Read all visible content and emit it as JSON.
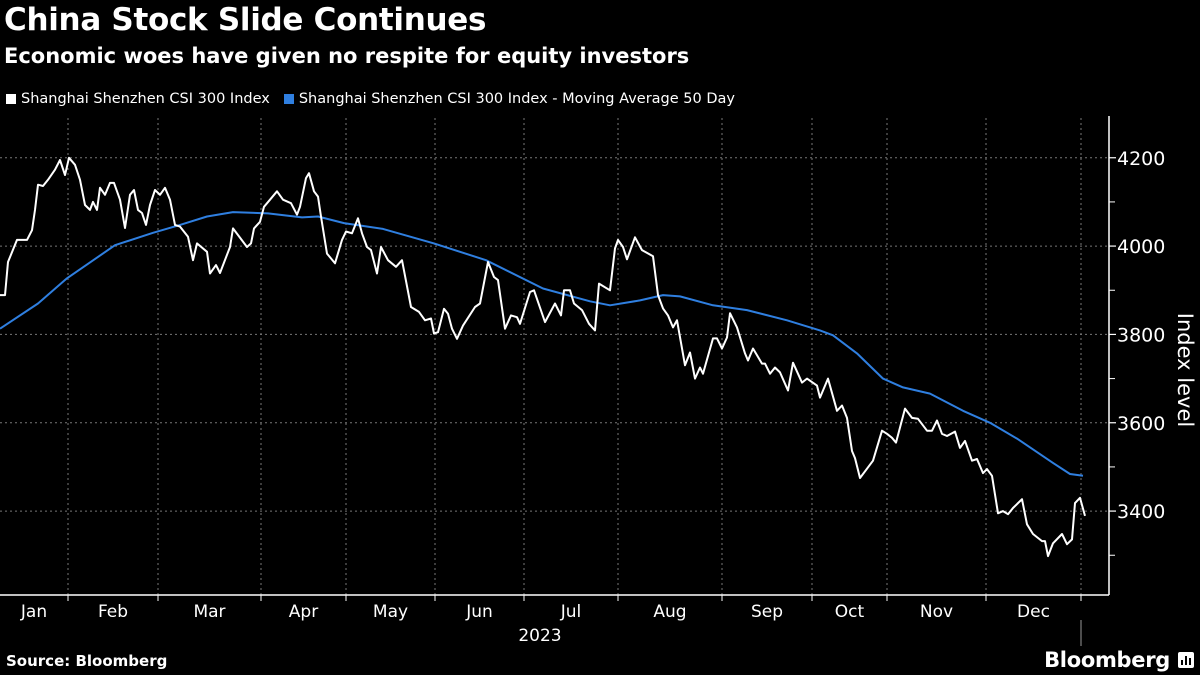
{
  "title": "China Stock Slide Continues",
  "subtitle": "Economic woes have given no respite for equity investors",
  "source": "Source: Bloomberg",
  "brand": "Bloomberg",
  "chart_data": {
    "type": "line",
    "ylabel": "Index level",
    "xlabel": "2023",
    "ylim": [
      3210,
      4290
    ],
    "xlim": [
      0,
      217
    ],
    "x_unit": "approximate trading-day index within 2023",
    "yticks": [
      3400,
      3600,
      3800,
      4000,
      4200
    ],
    "minor_yticks": [
      3300,
      3500,
      3700,
      3900,
      4100
    ],
    "grid": true,
    "legend_position": "top-left",
    "months": [
      "Jan",
      "Feb",
      "Mar",
      "Apr",
      "May",
      "Jun",
      "Jul",
      "Aug",
      "Sep",
      "Oct",
      "Nov",
      "Dec"
    ],
    "month_boundaries": [
      13.6,
      31.6,
      52.2,
      69.2,
      87,
      104.8,
      123.6,
      144.4,
      162.4,
      177.4,
      197.2,
      216.2
    ],
    "series": [
      {
        "name": "Shanghai Shenzhen CSI 300 Index",
        "color": "#ffffff",
        "points": [
          [
            0,
            3889
          ],
          [
            1,
            3889
          ],
          [
            1.6,
            3964
          ],
          [
            3.4,
            4014
          ],
          [
            5.4,
            4014
          ],
          [
            6.4,
            4036
          ],
          [
            7,
            4082
          ],
          [
            7.6,
            4139
          ],
          [
            8.6,
            4136
          ],
          [
            9.6,
            4150
          ],
          [
            11,
            4173
          ],
          [
            12,
            4195
          ],
          [
            13,
            4161
          ],
          [
            13.8,
            4200
          ],
          [
            15,
            4184
          ],
          [
            16,
            4150
          ],
          [
            17,
            4093
          ],
          [
            18,
            4082
          ],
          [
            18.6,
            4100
          ],
          [
            19.4,
            4082
          ],
          [
            20,
            4132
          ],
          [
            21,
            4116
          ],
          [
            22,
            4143
          ],
          [
            22.8,
            4143
          ],
          [
            24,
            4105
          ],
          [
            25,
            4041
          ],
          [
            26,
            4116
          ],
          [
            26.8,
            4127
          ],
          [
            27.6,
            4082
          ],
          [
            28.4,
            4075
          ],
          [
            29.2,
            4048
          ],
          [
            30,
            4093
          ],
          [
            31,
            4127
          ],
          [
            32,
            4116
          ],
          [
            33,
            4132
          ],
          [
            34,
            4105
          ],
          [
            35,
            4048
          ],
          [
            36,
            4044
          ],
          [
            37.6,
            4021
          ],
          [
            38.6,
            3968
          ],
          [
            39.4,
            4006
          ],
          [
            41.4,
            3987
          ],
          [
            42,
            3938
          ],
          [
            43.2,
            3957
          ],
          [
            44,
            3939
          ],
          [
            46,
            3998
          ],
          [
            46.6,
            4040
          ],
          [
            49.4,
            3998
          ],
          [
            50.2,
            4006
          ],
          [
            50.8,
            4040
          ],
          [
            52,
            4055
          ],
          [
            52.8,
            4089
          ],
          [
            54,
            4105
          ],
          [
            55.4,
            4124
          ],
          [
            56.6,
            4105
          ],
          [
            58.2,
            4097
          ],
          [
            59.4,
            4071
          ],
          [
            60,
            4089
          ],
          [
            61.2,
            4154
          ],
          [
            61.8,
            4165
          ],
          [
            62.8,
            4124
          ],
          [
            63.6,
            4112
          ],
          [
            64.2,
            4067
          ],
          [
            65.4,
            3983
          ],
          [
            67,
            3961
          ],
          [
            68.4,
            4014
          ],
          [
            69.2,
            4033
          ],
          [
            70.4,
            4029
          ],
          [
            71.6,
            4063
          ],
          [
            72.4,
            4029
          ],
          [
            73.4,
            3998
          ],
          [
            74.2,
            3991
          ],
          [
            75.4,
            3938
          ],
          [
            76.2,
            3998
          ],
          [
            77.6,
            3968
          ],
          [
            79.2,
            3953
          ],
          [
            80.4,
            3968
          ],
          [
            82.2,
            3862
          ],
          [
            83.8,
            3851
          ],
          [
            85,
            3832
          ],
          [
            86.2,
            3836
          ],
          [
            86.8,
            3802
          ],
          [
            87.6,
            3805
          ],
          [
            88.8,
            3858
          ],
          [
            89.6,
            3847
          ],
          [
            90.4,
            3813
          ],
          [
            91.4,
            3790
          ],
          [
            92.6,
            3820
          ],
          [
            95,
            3862
          ],
          [
            96,
            3870
          ],
          [
            97.6,
            3964
          ],
          [
            98.8,
            3930
          ],
          [
            99.6,
            3923
          ],
          [
            101,
            3813
          ],
          [
            102.2,
            3843
          ],
          [
            103.4,
            3839
          ],
          [
            104,
            3824
          ],
          [
            106,
            3896
          ],
          [
            106.8,
            3900
          ],
          [
            109,
            3828
          ],
          [
            111,
            3870
          ],
          [
            112.2,
            3843
          ],
          [
            112.8,
            3900
          ],
          [
            114,
            3900
          ],
          [
            114.8,
            3870
          ],
          [
            116.4,
            3855
          ],
          [
            117.8,
            3824
          ],
          [
            119,
            3809
          ],
          [
            119.8,
            3915
          ],
          [
            122,
            3900
          ],
          [
            123,
            3995
          ],
          [
            123.6,
            4014
          ],
          [
            124.6,
            3998
          ],
          [
            125.4,
            3970
          ],
          [
            127,
            4020
          ],
          [
            128.4,
            3991
          ],
          [
            130.6,
            3977
          ],
          [
            131.6,
            3889
          ],
          [
            132.6,
            3859
          ],
          [
            133.6,
            3843
          ],
          [
            134.6,
            3816
          ],
          [
            135.4,
            3832
          ],
          [
            137,
            3730
          ],
          [
            138,
            3759
          ],
          [
            139,
            3700
          ],
          [
            140,
            3725
          ],
          [
            140.6,
            3711
          ],
          [
            142.6,
            3791
          ],
          [
            143.4,
            3791
          ],
          [
            144.4,
            3768
          ],
          [
            145.4,
            3793
          ],
          [
            146,
            3848
          ],
          [
            147.4,
            3816
          ],
          [
            149,
            3757
          ],
          [
            149.6,
            3741
          ],
          [
            150.6,
            3768
          ],
          [
            152.4,
            3734
          ],
          [
            153,
            3734
          ],
          [
            154,
            3711
          ],
          [
            155,
            3725
          ],
          [
            156,
            3714
          ],
          [
            157.6,
            3673
          ],
          [
            158.6,
            3736
          ],
          [
            160.4,
            3691
          ],
          [
            161.4,
            3700
          ],
          [
            163.4,
            3684
          ],
          [
            164,
            3657
          ],
          [
            165.6,
            3700
          ],
          [
            167.4,
            3627
          ],
          [
            168.4,
            3639
          ],
          [
            169.4,
            3611
          ],
          [
            170.4,
            3536
          ],
          [
            171,
            3520
          ],
          [
            172,
            3475
          ],
          [
            174.6,
            3514
          ],
          [
            176.4,
            3582
          ],
          [
            177.4,
            3575
          ],
          [
            178.4,
            3566
          ],
          [
            179.2,
            3555
          ],
          [
            181,
            3632
          ],
          [
            182.4,
            3611
          ],
          [
            183.6,
            3609
          ],
          [
            185.4,
            3582
          ],
          [
            186.4,
            3582
          ],
          [
            187.4,
            3605
          ],
          [
            188.4,
            3575
          ],
          [
            189.4,
            3570
          ],
          [
            191,
            3580
          ],
          [
            192,
            3543
          ],
          [
            193,
            3559
          ],
          [
            194.4,
            3514
          ],
          [
            195.4,
            3518
          ],
          [
            196.6,
            3486
          ],
          [
            197.4,
            3495
          ],
          [
            198.4,
            3480
          ],
          [
            199.6,
            3395
          ],
          [
            200.6,
            3400
          ],
          [
            201.6,
            3393
          ],
          [
            202.6,
            3407
          ],
          [
            204.4,
            3427
          ],
          [
            205.4,
            3370
          ],
          [
            206.6,
            3348
          ],
          [
            208.4,
            3332
          ],
          [
            209,
            3332
          ],
          [
            209.6,
            3298
          ],
          [
            210.6,
            3327
          ],
          [
            212.4,
            3348
          ],
          [
            213.4,
            3325
          ],
          [
            214.4,
            3336
          ],
          [
            215,
            3418
          ],
          [
            216,
            3430
          ],
          [
            217,
            3389
          ]
        ]
      },
      {
        "name": "Shanghai Shenzhen CSI 300 Index - Moving Average 50 Day",
        "color": "#2f7fe0",
        "points": [
          [
            0,
            3813
          ],
          [
            7.6,
            3870
          ],
          [
            13.4,
            3927
          ],
          [
            23,
            4002
          ],
          [
            30.6,
            4030
          ],
          [
            36,
            4048
          ],
          [
            41.4,
            4067
          ],
          [
            46.6,
            4077
          ],
          [
            53.6,
            4074
          ],
          [
            60.4,
            4065
          ],
          [
            63.6,
            4067
          ],
          [
            68.8,
            4052
          ],
          [
            76.6,
            4039
          ],
          [
            86.8,
            4006
          ],
          [
            97.2,
            3968
          ],
          [
            108.6,
            3904
          ],
          [
            118,
            3875
          ],
          [
            122,
            3866
          ],
          [
            128,
            3877
          ],
          [
            132.6,
            3889
          ],
          [
            136,
            3886
          ],
          [
            142.6,
            3866
          ],
          [
            149.4,
            3855
          ],
          [
            157.4,
            3832
          ],
          [
            164,
            3809
          ],
          [
            166.6,
            3798
          ],
          [
            171.4,
            3757
          ],
          [
            176.6,
            3700
          ],
          [
            180.6,
            3680
          ],
          [
            186,
            3666
          ],
          [
            192.6,
            3627
          ],
          [
            198,
            3600
          ],
          [
            203.4,
            3564
          ],
          [
            210.6,
            3509
          ],
          [
            214,
            3484
          ],
          [
            216.6,
            3480
          ]
        ]
      }
    ]
  }
}
